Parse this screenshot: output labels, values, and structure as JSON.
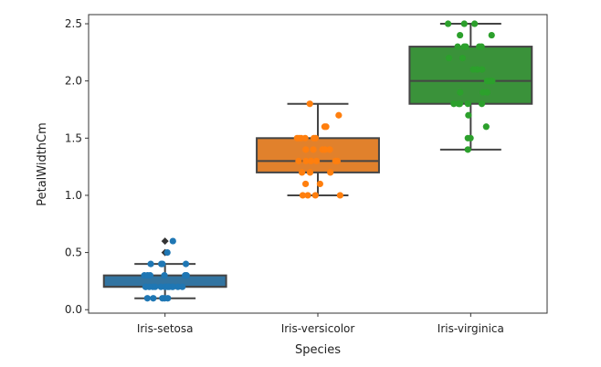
{
  "chart_data": {
    "type": "box",
    "xlabel": "Species",
    "ylabel": "PetalWidthCm",
    "ylim": [
      -0.03,
      2.58
    ],
    "yticks": [
      "0.0",
      "0.5",
      "1.0",
      "1.5",
      "2.0",
      "2.5"
    ],
    "categories": [
      "Iris-setosa",
      "Iris-versicolor",
      "Iris-virginica"
    ],
    "colors": [
      "#3274a1",
      "#e1812c",
      "#3a923a"
    ],
    "point_colors": [
      "#1f77b4",
      "#ff7f0e",
      "#2ca02c"
    ],
    "boxes": [
      {
        "category": "Iris-setosa",
        "whisker_low": 0.1,
        "q1": 0.2,
        "median": 0.2,
        "q3": 0.3,
        "whisker_high": 0.4,
        "outliers": [
          0.5,
          0.6
        ]
      },
      {
        "category": "Iris-versicolor",
        "whisker_low": 1.0,
        "q1": 1.2,
        "median": 1.3,
        "q3": 1.5,
        "whisker_high": 1.8,
        "outliers": []
      },
      {
        "category": "Iris-virginica",
        "whisker_low": 1.4,
        "q1": 1.8,
        "median": 2.0,
        "q3": 2.3,
        "whisker_high": 2.5,
        "outliers": []
      }
    ],
    "points": [
      [
        0.1,
        0.1,
        0.1,
        0.1,
        0.1,
        0.2,
        0.2,
        0.2,
        0.2,
        0.2,
        0.2,
        0.2,
        0.2,
        0.2,
        0.2,
        0.2,
        0.2,
        0.2,
        0.2,
        0.3,
        0.3,
        0.3,
        0.3,
        0.3,
        0.3,
        0.4,
        0.4,
        0.4,
        0.4,
        0.5,
        0.6
      ],
      [
        1.0,
        1.0,
        1.0,
        1.0,
        1.1,
        1.1,
        1.2,
        1.2,
        1.2,
        1.3,
        1.3,
        1.3,
        1.3,
        1.3,
        1.3,
        1.3,
        1.4,
        1.4,
        1.4,
        1.4,
        1.4,
        1.5,
        1.5,
        1.5,
        1.5,
        1.5,
        1.5,
        1.6,
        1.6,
        1.7,
        1.8
      ],
      [
        1.4,
        1.5,
        1.5,
        1.6,
        1.7,
        1.8,
        1.8,
        1.8,
        1.8,
        1.8,
        1.9,
        1.9,
        1.9,
        2.0,
        2.0,
        2.0,
        2.1,
        2.1,
        2.1,
        2.2,
        2.2,
        2.3,
        2.3,
        2.3,
        2.3,
        2.3,
        2.4,
        2.4,
        2.5,
        2.5,
        2.5
      ]
    ]
  }
}
